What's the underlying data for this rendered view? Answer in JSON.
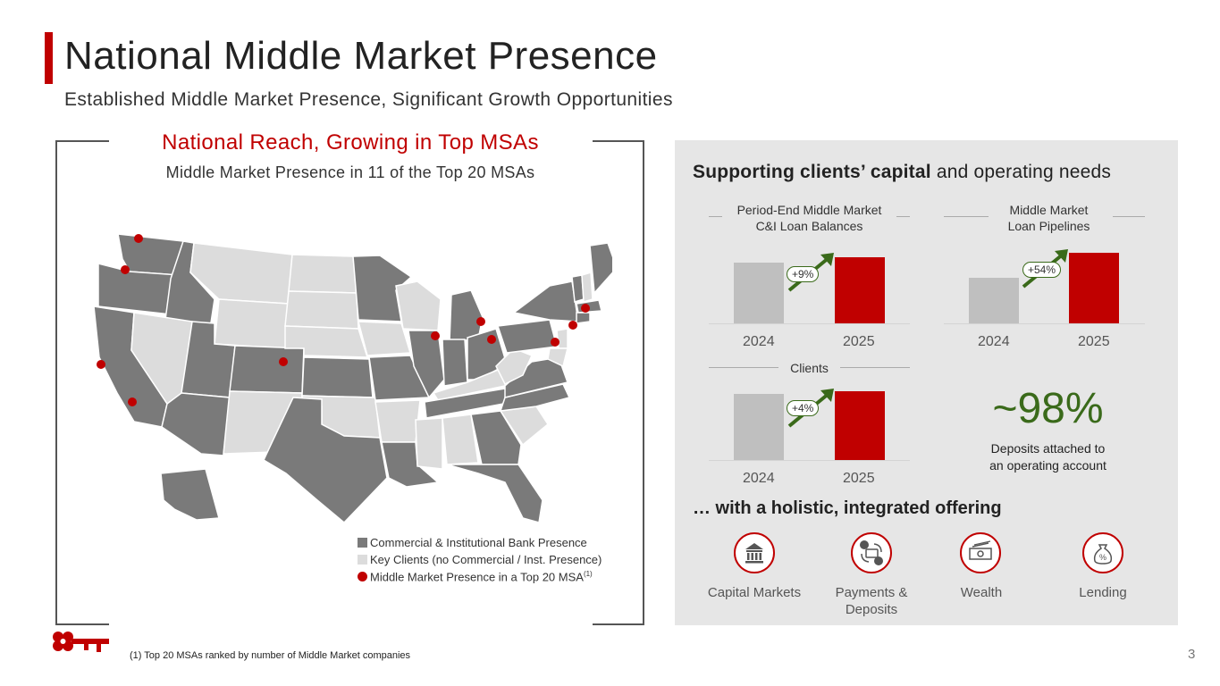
{
  "header": {
    "title": "National Middle Market Presence",
    "subtitle": "Established Middle Market Presence, Significant Growth Opportunities"
  },
  "left_panel": {
    "heading": "National Reach, Growing in Top MSAs",
    "subheading": "Middle Market Presence in 11 of the Top 20 MSAs",
    "legend": [
      {
        "label": "Commercial & Institutional Bank Presence",
        "color": "#7a7a7a"
      },
      {
        "label": "Key Clients (no Commercial / Inst. Presence)",
        "color": "#dcdcdc"
      },
      {
        "label": "Middle Market Presence in a Top 20 MSA",
        "color": "#c00000",
        "superscript": "(1)"
      }
    ]
  },
  "right_panel": {
    "heading_bold": "Supporting clients’ capital",
    "heading_rest": " and operating needs",
    "chart_data": [
      {
        "type": "bar",
        "title": "Period-End Middle Market C&I Loan Balances",
        "title_lines": [
          "Period-End Middle Market",
          "C&I Loan Balances"
        ],
        "categories": [
          "2024",
          "2025"
        ],
        "values": [
          100,
          109
        ],
        "change_label": "+9%",
        "colors": [
          "#bfbfbf",
          "#c00000"
        ]
      },
      {
        "type": "bar",
        "title": "Middle Market Loan Pipelines",
        "title_lines": [
          "Middle Market",
          "Loan Pipelines"
        ],
        "categories": [
          "2024",
          "2025"
        ],
        "values": [
          100,
          154
        ],
        "change_label": "+54%",
        "colors": [
          "#bfbfbf",
          "#c00000"
        ]
      },
      {
        "type": "bar",
        "title": "Clients",
        "title_lines": [
          "Clients"
        ],
        "categories": [
          "2024",
          "2025"
        ],
        "values": [
          100,
          104
        ],
        "change_label": "+4%",
        "colors": [
          "#bfbfbf",
          "#c00000"
        ]
      }
    ],
    "deposits": {
      "value": "~98%",
      "line1": "Deposits attached to",
      "line2": "an operating account"
    },
    "holistic_heading": "… with a holistic, integrated offering",
    "offerings": [
      {
        "label": "Capital Markets",
        "icon": "bank-building-icon"
      },
      {
        "label_line1": "Payments &",
        "label_line2": "Deposits",
        "icon": "payments-exchange-icon"
      },
      {
        "label": "Wealth",
        "icon": "cash-bill-icon"
      },
      {
        "label": "Lending",
        "icon": "money-bag-percent-icon"
      }
    ]
  },
  "footnote": "(1) Top 20 MSAs ranked by number of Middle Market companies",
  "page_number": "3",
  "colors": {
    "accent": "#c00000",
    "growth": "#3a6a1a",
    "panel": "#e6e6e6",
    "state_dark": "#7a7a7a",
    "state_light": "#dcdcdc"
  }
}
